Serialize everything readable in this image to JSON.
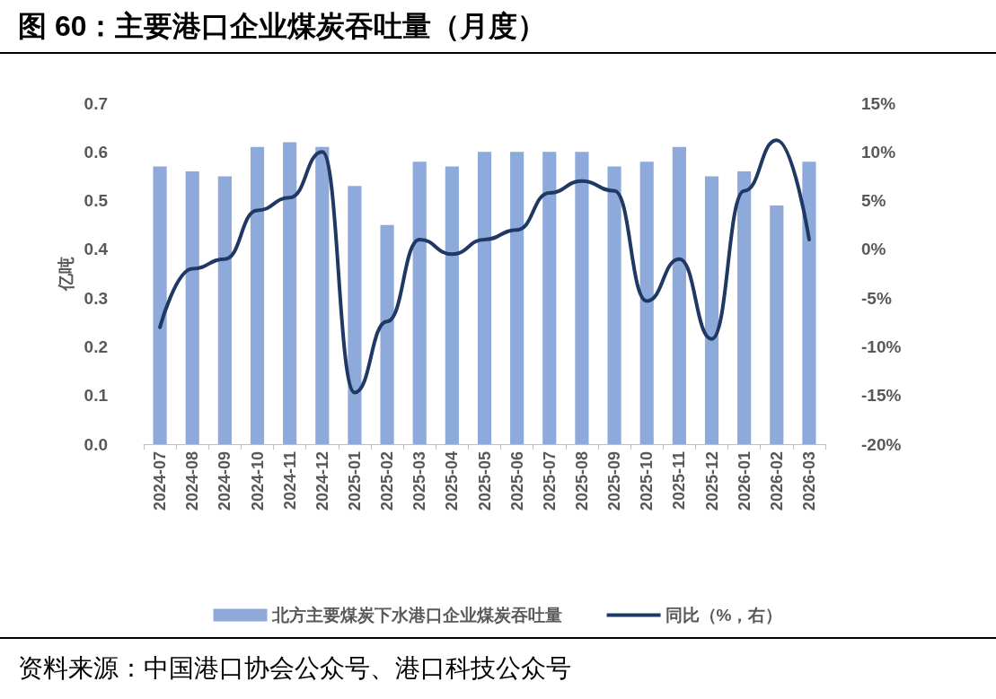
{
  "chart_data": {
    "type": "bar",
    "title": "图 60：主要港口企业煤炭吞吐量（月度）",
    "ylabel": "亿吨",
    "categories": [
      "2024-07",
      "2024-08",
      "2024-09",
      "2024-10",
      "2024-11",
      "2024-12",
      "2025-01",
      "2025-02",
      "2025-03",
      "2025-04",
      "2025-05",
      "2025-06",
      "2025-07",
      "2025-08",
      "2025-09",
      "2025-10",
      "2025-11",
      "2025-12",
      "2026-01",
      "2026-02",
      "2026-03"
    ],
    "series": [
      {
        "name": "北方主要煤炭下水港口企业煤炭吞吐量",
        "color": "#8eaadb",
        "values": [
          0.57,
          0.56,
          0.55,
          0.61,
          0.62,
          0.61,
          0.53,
          0.45,
          0.58,
          0.57,
          0.6,
          0.6,
          0.6,
          0.6,
          0.57,
          0.58,
          0.61,
          0.55,
          0.56,
          0.49,
          0.58
        ]
      },
      {
        "name": "同比（%，右）",
        "type": "line",
        "axis": "y2",
        "color": "#1f3864",
        "values": [
          -8,
          -2,
          -1,
          4,
          5.3,
          10,
          -14.7,
          -7.4,
          1,
          -0.5,
          1,
          2,
          5.8,
          7,
          6,
          -5.3,
          -1,
          -9.2,
          6,
          11.2,
          1
        ]
      }
    ],
    "ylim": [
      0,
      0.7
    ],
    "yticks": [
      {
        "value": 0,
        "label": "0.0"
      },
      {
        "value": 0.1,
        "label": "0.1"
      },
      {
        "value": 0.2,
        "label": "0.2"
      },
      {
        "value": 0.3,
        "label": "0.3"
      },
      {
        "value": 0.4,
        "label": "0.4"
      },
      {
        "value": 0.5,
        "label": "0.5"
      },
      {
        "value": 0.6,
        "label": "0.6"
      },
      {
        "value": 0.7,
        "label": "0.7"
      }
    ],
    "y2lim": [
      -20,
      15
    ],
    "y2ticks": [
      {
        "value": -20,
        "label": "-20%"
      },
      {
        "value": -15,
        "label": "-15%"
      },
      {
        "value": -10,
        "label": "-10%"
      },
      {
        "value": -5,
        "label": "-5%"
      },
      {
        "value": 0,
        "label": "0%"
      },
      {
        "value": 5,
        "label": "5%"
      },
      {
        "value": 10,
        "label": "10%"
      },
      {
        "value": 15,
        "label": "15%"
      }
    ],
    "grid": false,
    "legend": "bottom",
    "marker": "none",
    "line_style": "solid",
    "annotations": [
      "资料来源：中国港口协会公众号、港口科技公众号"
    ]
  }
}
